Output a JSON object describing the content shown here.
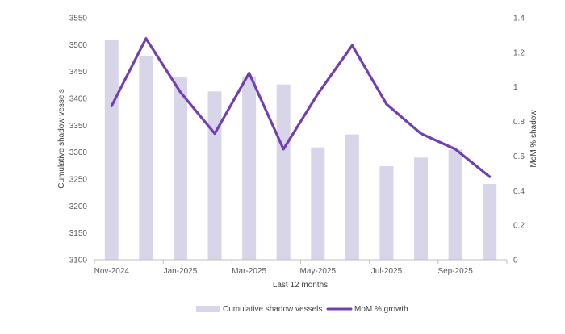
{
  "chart_data": {
    "type": "bar+line",
    "categories": [
      "Nov-2024",
      "Dec-2024",
      "Jan-2025",
      "Feb-2025",
      "Mar-2025",
      "Apr-2025",
      "May-2025",
      "Jun-2025",
      "Jul-2025",
      "Aug-2025",
      "Sep-2025",
      "Oct-2025"
    ],
    "x_tick_labels": [
      "Nov-2024",
      "Jan-2025",
      "Mar-2025",
      "May-2025",
      "Jul-2025",
      "Sep-2025"
    ],
    "xlabel": "Last 12 months",
    "series": [
      {
        "name": "Cumulative shadow vessels",
        "kind": "bar",
        "axis": "left",
        "color": "#d9d5e8",
        "values": [
          3508,
          3479,
          3439,
          3413,
          3439,
          3426,
          3309,
          3333,
          3274,
          3290,
          3305,
          3241
        ]
      },
      {
        "name": "MoM % growth",
        "kind": "line",
        "axis": "right",
        "color": "#7040b0",
        "values": [
          0.89,
          1.28,
          0.97,
          0.73,
          1.08,
          0.64,
          0.96,
          1.24,
          0.9,
          0.73,
          0.64,
          0.48
        ]
      }
    ],
    "y_left": {
      "label": "Cumulative shadow vessels",
      "lim": [
        3100,
        3550
      ],
      "ticks": [
        "3100",
        "3150",
        "3200",
        "3250",
        "3300",
        "3350",
        "3400",
        "3450",
        "3500",
        "3550"
      ]
    },
    "y_right": {
      "label": "MoM % shadow",
      "lim": [
        0,
        1.4
      ],
      "ticks": [
        "0",
        "0.2",
        "0.4",
        "0.6",
        "0.8",
        "1",
        "1.2",
        "1.4"
      ]
    },
    "legend": {
      "position": "bottom",
      "items": [
        "Cumulative shadow vessels",
        "MoM % growth"
      ]
    },
    "grid": false
  }
}
